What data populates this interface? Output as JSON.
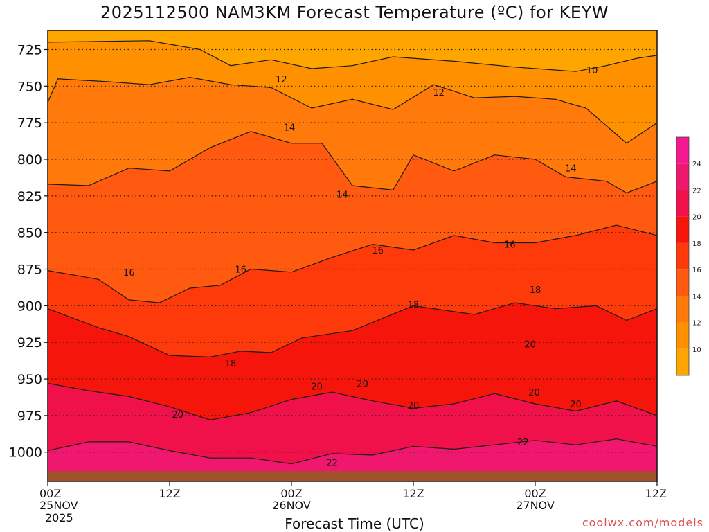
{
  "title": "2025112500 NAM3KM Forecast Temperature (ºC) for KEYW",
  "credit": "coolwx.com/models",
  "chart_data": {
    "type": "contour",
    "title": "2025112500 NAM3KM Forecast Temperature (ºC) for KEYW",
    "xlabel": "Forecast Time (UTC)",
    "ylabel": "",
    "x_range_hours": [
      0,
      60
    ],
    "x_ticks": [
      {
        "hour": 0,
        "label": "00Z",
        "date": "25NOV",
        "year": "2025"
      },
      {
        "hour": 12,
        "label": "12Z",
        "date": "",
        "year": ""
      },
      {
        "hour": 24,
        "label": "00Z",
        "date": "26NOV",
        "year": ""
      },
      {
        "hour": 36,
        "label": "12Z",
        "date": "",
        "year": ""
      },
      {
        "hour": 48,
        "label": "00Z",
        "date": "27NOV",
        "year": ""
      },
      {
        "hour": 60,
        "label": "12Z",
        "date": "",
        "year": ""
      }
    ],
    "y_ticks": [
      725,
      750,
      775,
      800,
      825,
      850,
      875,
      900,
      925,
      950,
      975,
      1000
    ],
    "y_range_hPa": [
      712,
      1020
    ],
    "grid": true,
    "ground_level_hPa": 1013,
    "bands": [
      {
        "range": [
          8,
          10
        ],
        "color": "#FFA500"
      },
      {
        "range": [
          10,
          12
        ],
        "color": "#FF9000"
      },
      {
        "range": [
          12,
          14
        ],
        "color": "#FF7A0A"
      },
      {
        "range": [
          14,
          16
        ],
        "color": "#FF5A10"
      },
      {
        "range": [
          16,
          18
        ],
        "color": "#FF3A0A"
      },
      {
        "range": [
          18,
          20
        ],
        "color": "#F5150A"
      },
      {
        "range": [
          20,
          22
        ],
        "color": "#F0104A"
      },
      {
        "range": [
          22,
          24
        ],
        "color": "#F0186E"
      },
      {
        "range": [
          24,
          26
        ],
        "color": "#F51890"
      }
    ],
    "contours": [
      {
        "level": 10,
        "label": "10",
        "points": [
          [
            0,
            720
          ],
          [
            10,
            719
          ],
          [
            15,
            725
          ],
          [
            18,
            736
          ],
          [
            22,
            732
          ],
          [
            26,
            738
          ],
          [
            30,
            736
          ],
          [
            34,
            730
          ],
          [
            40,
            733
          ],
          [
            46,
            737
          ],
          [
            52,
            740
          ],
          [
            55,
            736
          ],
          [
            58,
            731
          ],
          [
            60,
            729
          ]
        ]
      },
      {
        "level": 12,
        "label": "12",
        "points": [
          [
            0,
            761
          ],
          [
            1,
            745
          ],
          [
            6,
            747
          ],
          [
            10,
            749
          ],
          [
            14,
            744
          ],
          [
            18,
            749
          ],
          [
            22,
            751
          ],
          [
            26,
            765
          ],
          [
            30,
            759
          ],
          [
            34,
            766
          ],
          [
            38,
            749
          ],
          [
            42,
            758
          ],
          [
            46,
            757
          ],
          [
            50,
            759
          ],
          [
            53,
            765
          ],
          [
            57,
            789
          ],
          [
            60,
            775
          ]
        ]
      },
      {
        "level": 14,
        "label": "14",
        "points": [
          [
            0,
            817
          ],
          [
            4,
            818
          ],
          [
            8,
            806
          ],
          [
            12,
            808
          ],
          [
            16,
            792
          ],
          [
            20,
            781
          ],
          [
            24,
            789
          ],
          [
            27,
            789
          ],
          [
            30,
            818
          ],
          [
            34,
            821
          ],
          [
            36,
            797
          ],
          [
            40,
            808
          ],
          [
            44,
            797
          ],
          [
            48,
            800
          ],
          [
            51,
            812
          ],
          [
            55,
            815
          ],
          [
            57,
            823
          ],
          [
            60,
            815
          ]
        ]
      },
      {
        "level": 16,
        "label": "16",
        "points": [
          [
            0,
            876
          ],
          [
            5,
            882
          ],
          [
            8,
            896
          ],
          [
            11,
            898
          ],
          [
            14,
            888
          ],
          [
            17,
            886
          ],
          [
            20,
            875
          ],
          [
            24,
            877
          ],
          [
            28,
            867
          ],
          [
            32,
            858
          ],
          [
            36,
            862
          ],
          [
            40,
            852
          ],
          [
            44,
            857
          ],
          [
            48,
            857
          ],
          [
            52,
            852
          ],
          [
            56,
            845
          ],
          [
            60,
            852
          ]
        ]
      },
      {
        "level": 18,
        "label": "18",
        "points": [
          [
            0,
            902
          ],
          [
            5,
            915
          ],
          [
            8,
            921
          ],
          [
            12,
            934
          ],
          [
            16,
            935
          ],
          [
            19,
            931
          ],
          [
            22,
            932
          ],
          [
            25,
            922
          ],
          [
            30,
            917
          ],
          [
            36,
            900
          ],
          [
            42,
            906
          ],
          [
            46,
            898
          ],
          [
            50,
            902
          ],
          [
            54,
            900
          ],
          [
            57,
            910
          ],
          [
            60,
            902
          ]
        ]
      },
      {
        "level": 20,
        "label": "20",
        "points": [
          [
            0,
            953
          ],
          [
            4,
            958
          ],
          [
            8,
            962
          ],
          [
            12,
            969
          ],
          [
            16,
            978
          ],
          [
            20,
            973
          ],
          [
            24,
            964
          ],
          [
            28,
            959
          ],
          [
            32,
            965
          ],
          [
            36,
            970
          ],
          [
            40,
            967
          ],
          [
            44,
            960
          ],
          [
            48,
            967
          ],
          [
            52,
            972
          ],
          [
            56,
            965
          ],
          [
            60,
            975
          ]
        ]
      },
      {
        "level": 22,
        "label": "22",
        "points": [
          [
            0,
            999
          ],
          [
            4,
            993
          ],
          [
            8,
            993
          ],
          [
            12,
            999
          ],
          [
            16,
            1004
          ],
          [
            20,
            1004
          ],
          [
            24,
            1008
          ],
          [
            28,
            1001
          ],
          [
            32,
            1002
          ],
          [
            36,
            996
          ],
          [
            40,
            998
          ],
          [
            44,
            995
          ],
          [
            48,
            992
          ],
          [
            52,
            995
          ],
          [
            56,
            991
          ],
          [
            60,
            996
          ]
        ]
      }
    ],
    "contour_labels": [
      {
        "text": "12",
        "hour": 23.0,
        "hPa": 745
      },
      {
        "text": "12",
        "hour": 38.5,
        "hPa": 754
      },
      {
        "text": "10",
        "hour": 53.6,
        "hPa": 739
      },
      {
        "text": "14",
        "hour": 23.8,
        "hPa": 778
      },
      {
        "text": "14",
        "hour": 29.0,
        "hPa": 824
      },
      {
        "text": "14",
        "hour": 51.5,
        "hPa": 806
      },
      {
        "text": "16",
        "hour": 32.5,
        "hPa": 862
      },
      {
        "text": "16",
        "hour": 45.5,
        "hPa": 858
      },
      {
        "text": "16",
        "hour": 8.0,
        "hPa": 877
      },
      {
        "text": "16",
        "hour": 19.0,
        "hPa": 875
      },
      {
        "text": "18",
        "hour": 36.0,
        "hPa": 899
      },
      {
        "text": "18",
        "hour": 48.0,
        "hPa": 889
      },
      {
        "text": "18",
        "hour": 18.0,
        "hPa": 939
      },
      {
        "text": "20",
        "hour": 47.5,
        "hPa": 926
      },
      {
        "text": "20",
        "hour": 26.5,
        "hPa": 955
      },
      {
        "text": "20",
        "hour": 31.0,
        "hPa": 953
      },
      {
        "text": "20",
        "hour": 12.8,
        "hPa": 974
      },
      {
        "text": "20",
        "hour": 36.0,
        "hPa": 968
      },
      {
        "text": "20",
        "hour": 47.9,
        "hPa": 959
      },
      {
        "text": "20",
        "hour": 52.0,
        "hPa": 967
      },
      {
        "text": "22",
        "hour": 46.8,
        "hPa": 993
      },
      {
        "text": "22",
        "hour": 28.0,
        "hPa": 1007
      }
    ],
    "legend": {
      "placement": "right",
      "labels": [
        "10",
        "12",
        "14",
        "16",
        "18",
        "20",
        "22",
        "24"
      ]
    }
  }
}
